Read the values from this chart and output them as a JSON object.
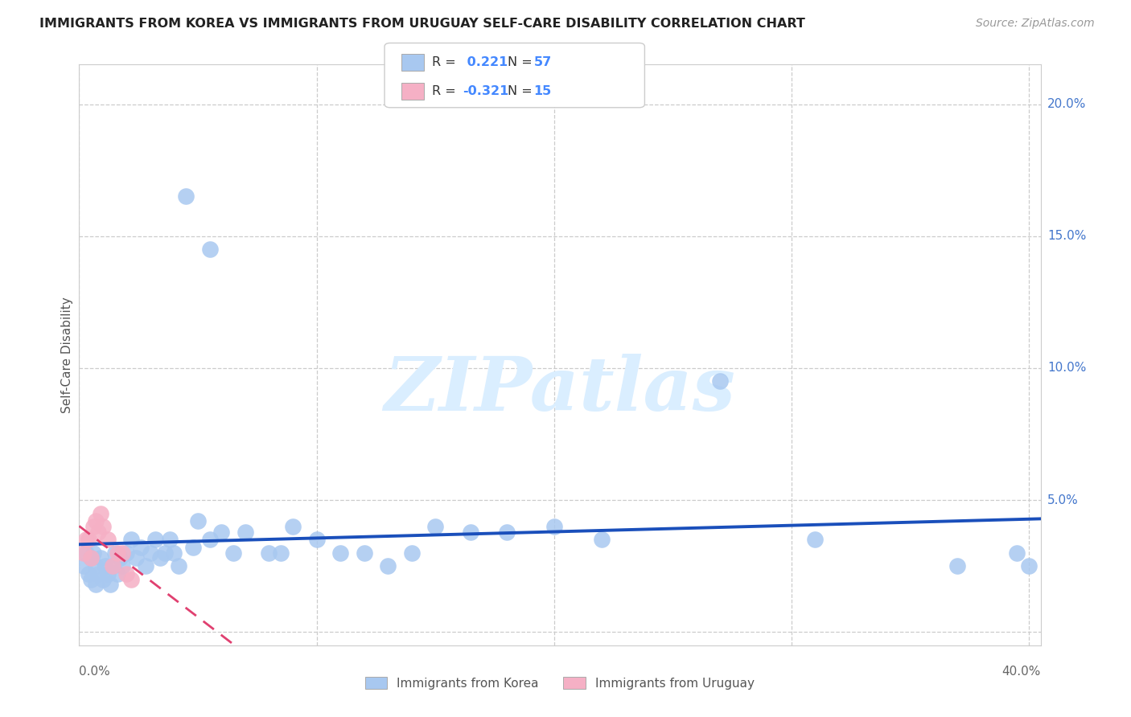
{
  "title": "IMMIGRANTS FROM KOREA VS IMMIGRANTS FROM URUGUAY SELF-CARE DISABILITY CORRELATION CHART",
  "source": "Source: ZipAtlas.com",
  "ylabel": "Self-Care Disability",
  "korea_R": 0.221,
  "korea_N": 57,
  "uruguay_R": -0.321,
  "uruguay_N": 15,
  "legend_korea": "Immigrants from Korea",
  "legend_uruguay": "Immigrants from Uruguay",
  "korea_color": "#a8c8f0",
  "korea_line_color": "#1a4fbb",
  "uruguay_color": "#f5b0c5",
  "uruguay_line_color": "#e04070",
  "watermark_color": "#daeeff",
  "korea_x": [
    0.002,
    0.003,
    0.004,
    0.005,
    0.005,
    0.006,
    0.007,
    0.007,
    0.008,
    0.009,
    0.01,
    0.011,
    0.012,
    0.013,
    0.014,
    0.015,
    0.016,
    0.017,
    0.018,
    0.02,
    0.022,
    0.024,
    0.026,
    0.028,
    0.03,
    0.032,
    0.034,
    0.036,
    0.038,
    0.04,
    0.042,
    0.045,
    0.048,
    0.05,
    0.055,
    0.055,
    0.06,
    0.065,
    0.07,
    0.08,
    0.085,
    0.09,
    0.1,
    0.11,
    0.12,
    0.13,
    0.14,
    0.15,
    0.165,
    0.18,
    0.2,
    0.22,
    0.27,
    0.31,
    0.37,
    0.395,
    0.4
  ],
  "korea_y": [
    0.025,
    0.03,
    0.022,
    0.028,
    0.02,
    0.03,
    0.018,
    0.025,
    0.022,
    0.028,
    0.02,
    0.025,
    0.022,
    0.018,
    0.025,
    0.03,
    0.022,
    0.028,
    0.025,
    0.03,
    0.035,
    0.028,
    0.032,
    0.025,
    0.03,
    0.035,
    0.028,
    0.03,
    0.035,
    0.03,
    0.025,
    0.165,
    0.032,
    0.042,
    0.145,
    0.035,
    0.038,
    0.03,
    0.038,
    0.03,
    0.03,
    0.04,
    0.035,
    0.03,
    0.03,
    0.025,
    0.03,
    0.04,
    0.038,
    0.038,
    0.04,
    0.035,
    0.095,
    0.035,
    0.025,
    0.03,
    0.025
  ],
  "uruguay_x": [
    0.002,
    0.003,
    0.004,
    0.005,
    0.006,
    0.007,
    0.008,
    0.009,
    0.01,
    0.012,
    0.014,
    0.016,
    0.018,
    0.02,
    0.022
  ],
  "uruguay_y": [
    0.03,
    0.035,
    0.035,
    0.028,
    0.04,
    0.042,
    0.038,
    0.045,
    0.04,
    0.035,
    0.025,
    0.03,
    0.03,
    0.022,
    0.02
  ],
  "xlim": [
    0.0,
    0.405
  ],
  "ylim": [
    -0.005,
    0.215
  ],
  "ytick_positions": [
    0.05,
    0.1,
    0.15,
    0.2
  ],
  "ytick_labels": [
    "5.0%",
    "10.0%",
    "15.0%",
    "20.0%"
  ]
}
